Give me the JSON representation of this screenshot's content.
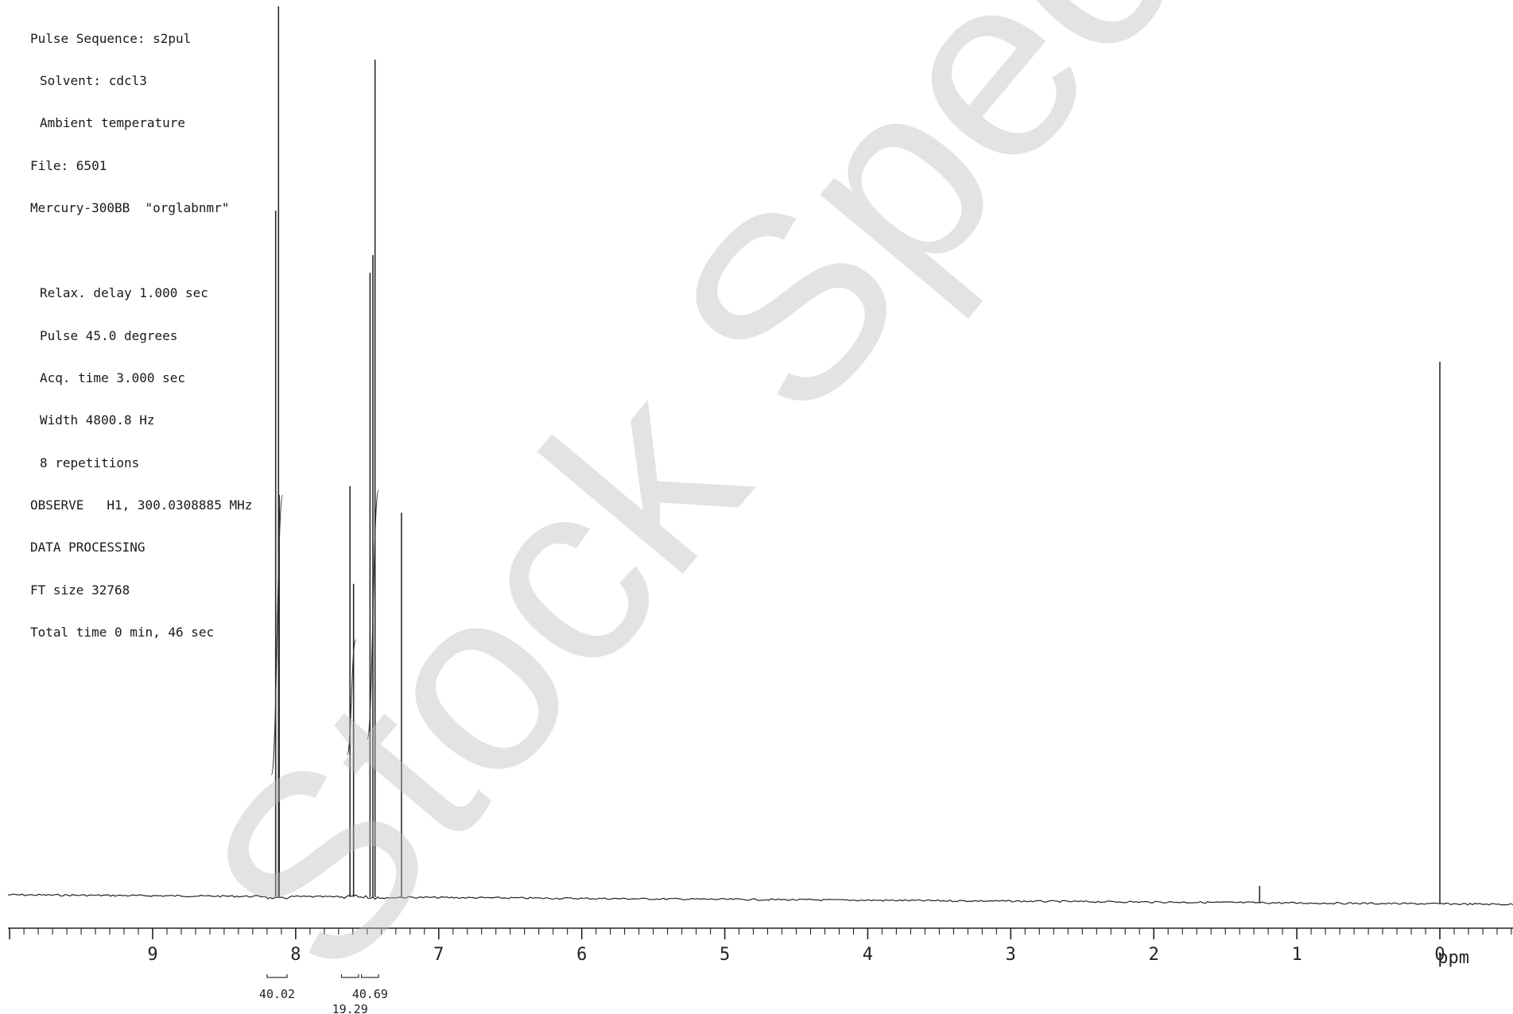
{
  "params": {
    "pulse_sequence": "Pulse Sequence: s2pul",
    "solvent": "Solvent: cdcl3",
    "temperature": "Ambient temperature",
    "file": "File: 6501",
    "instrument": "Mercury-300BB  \"orglabnmr\"",
    "relax_delay": "Relax. delay 1.000 sec",
    "pulse": "Pulse 45.0 degrees",
    "acq_time": "Acq. time 3.000 sec",
    "width": "Width 4800.8 Hz",
    "repetitions": "8 repetitions",
    "observe": "OBSERVE   H1, 300.0308885 MHz",
    "data_processing": "DATA PROCESSING",
    "ft_size": "FT size 32768",
    "total_time": "Total time 0 min, 46 sec"
  },
  "watermark": "Stock Spectrum",
  "chart_data": {
    "type": "line",
    "title": "",
    "xlabel": "ppm",
    "ylabel": "",
    "xlim": [
      10.05,
      -0.5
    ],
    "x_reversed": true,
    "ylim": [
      0,
      1.0
    ],
    "grid": false,
    "tick_labels": [
      "9",
      "8",
      "7",
      "6",
      "5",
      "4",
      "3",
      "2",
      "1",
      "0"
    ],
    "tick_values": [
      9,
      8,
      7,
      6,
      5,
      4,
      3,
      2,
      1,
      0
    ],
    "minor_tick_step": 0.1,
    "peaks": [
      {
        "ppm": 8.14,
        "height": 0.77
      },
      {
        "ppm": 8.12,
        "height": 1.0
      },
      {
        "ppm": 8.115,
        "height": 0.45
      },
      {
        "ppm": 7.62,
        "height": 0.46
      },
      {
        "ppm": 7.595,
        "height": 0.35
      },
      {
        "ppm": 7.48,
        "height": 0.7
      },
      {
        "ppm": 7.46,
        "height": 0.72
      },
      {
        "ppm": 7.445,
        "height": 0.94
      },
      {
        "ppm": 7.26,
        "height": 0.43
      },
      {
        "ppm": 1.26,
        "height": 0.01
      },
      {
        "ppm": 0.0,
        "height": 0.6
      }
    ],
    "integrals": [
      {
        "range": [
          8.2,
          8.06
        ],
        "value": "40.02"
      },
      {
        "range": [
          7.68,
          7.56
        ],
        "value": "19.29"
      },
      {
        "range": [
          7.54,
          7.42
        ],
        "value": "40.69"
      }
    ]
  }
}
